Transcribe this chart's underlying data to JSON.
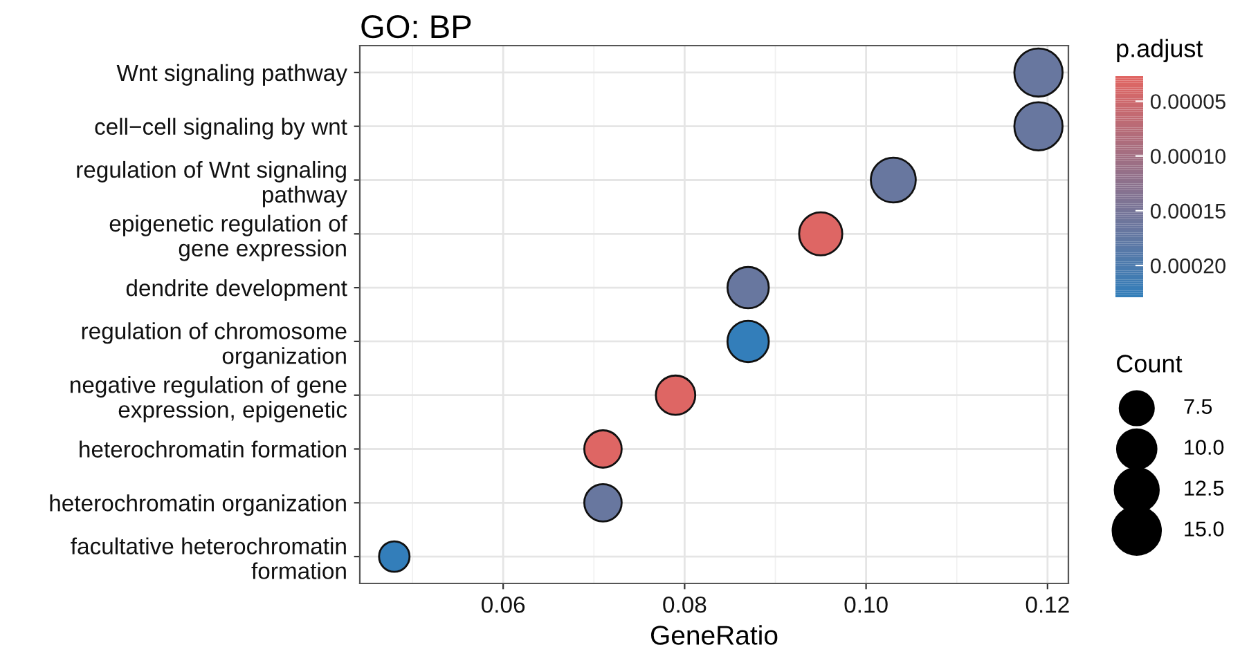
{
  "chart_data": {
    "type": "bubble",
    "title": "GO: BP",
    "xlabel": "GeneRatio",
    "categories": [
      "Wnt signaling pathway",
      "cell−cell signaling by wnt",
      "regulation of Wnt signaling\npathway",
      "epigenetic regulation of\ngene expression",
      "dendrite development",
      "regulation of chromosome\norganization",
      "negative regulation of gene\nexpression, epigenetic",
      "heterochromatin formation",
      "heterochromatin organization",
      "facultative heterochromatin\nformation"
    ],
    "values": [
      0.119,
      0.119,
      0.103,
      0.095,
      0.087,
      0.087,
      0.079,
      0.071,
      0.071,
      0.048
    ],
    "sizes": [
      15,
      15,
      13,
      12,
      11,
      11,
      10,
      9,
      9,
      6
    ],
    "size_legend": [
      {
        "value": 7.5,
        "label": "7.5"
      },
      {
        "value": 10,
        "label": "10.0"
      },
      {
        "value": 12.5,
        "label": "12.5"
      },
      {
        "value": 15,
        "label": "15.0"
      }
    ],
    "legend_title": "Count",
    "cvalues": [
      0.000166,
      0.000166,
      0.000166,
      3e-05,
      0.000166,
      0.000228,
      3e-05,
      3e-05,
      0.000166,
      0.000228
    ],
    "clabel": "p.adjust",
    "clim": [
      2.7e-05,
      0.000229
    ],
    "cticks": [
      {
        "value": 5e-05,
        "label": "0.00005"
      },
      {
        "value": 0.0001,
        "label": "0.00010"
      },
      {
        "value": 0.00015,
        "label": "0.00015"
      },
      {
        "value": 0.0002,
        "label": "0.00020"
      }
    ],
    "orientation": "horizontal",
    "xlim": [
      0.0442,
      0.1223
    ],
    "xticks": [
      {
        "value": 0.06,
        "label": "0.06"
      },
      {
        "value": 0.08,
        "label": "0.08"
      },
      {
        "value": 0.1,
        "label": "0.10"
      },
      {
        "value": 0.12,
        "label": "0.12"
      }
    ],
    "grid": true
  }
}
